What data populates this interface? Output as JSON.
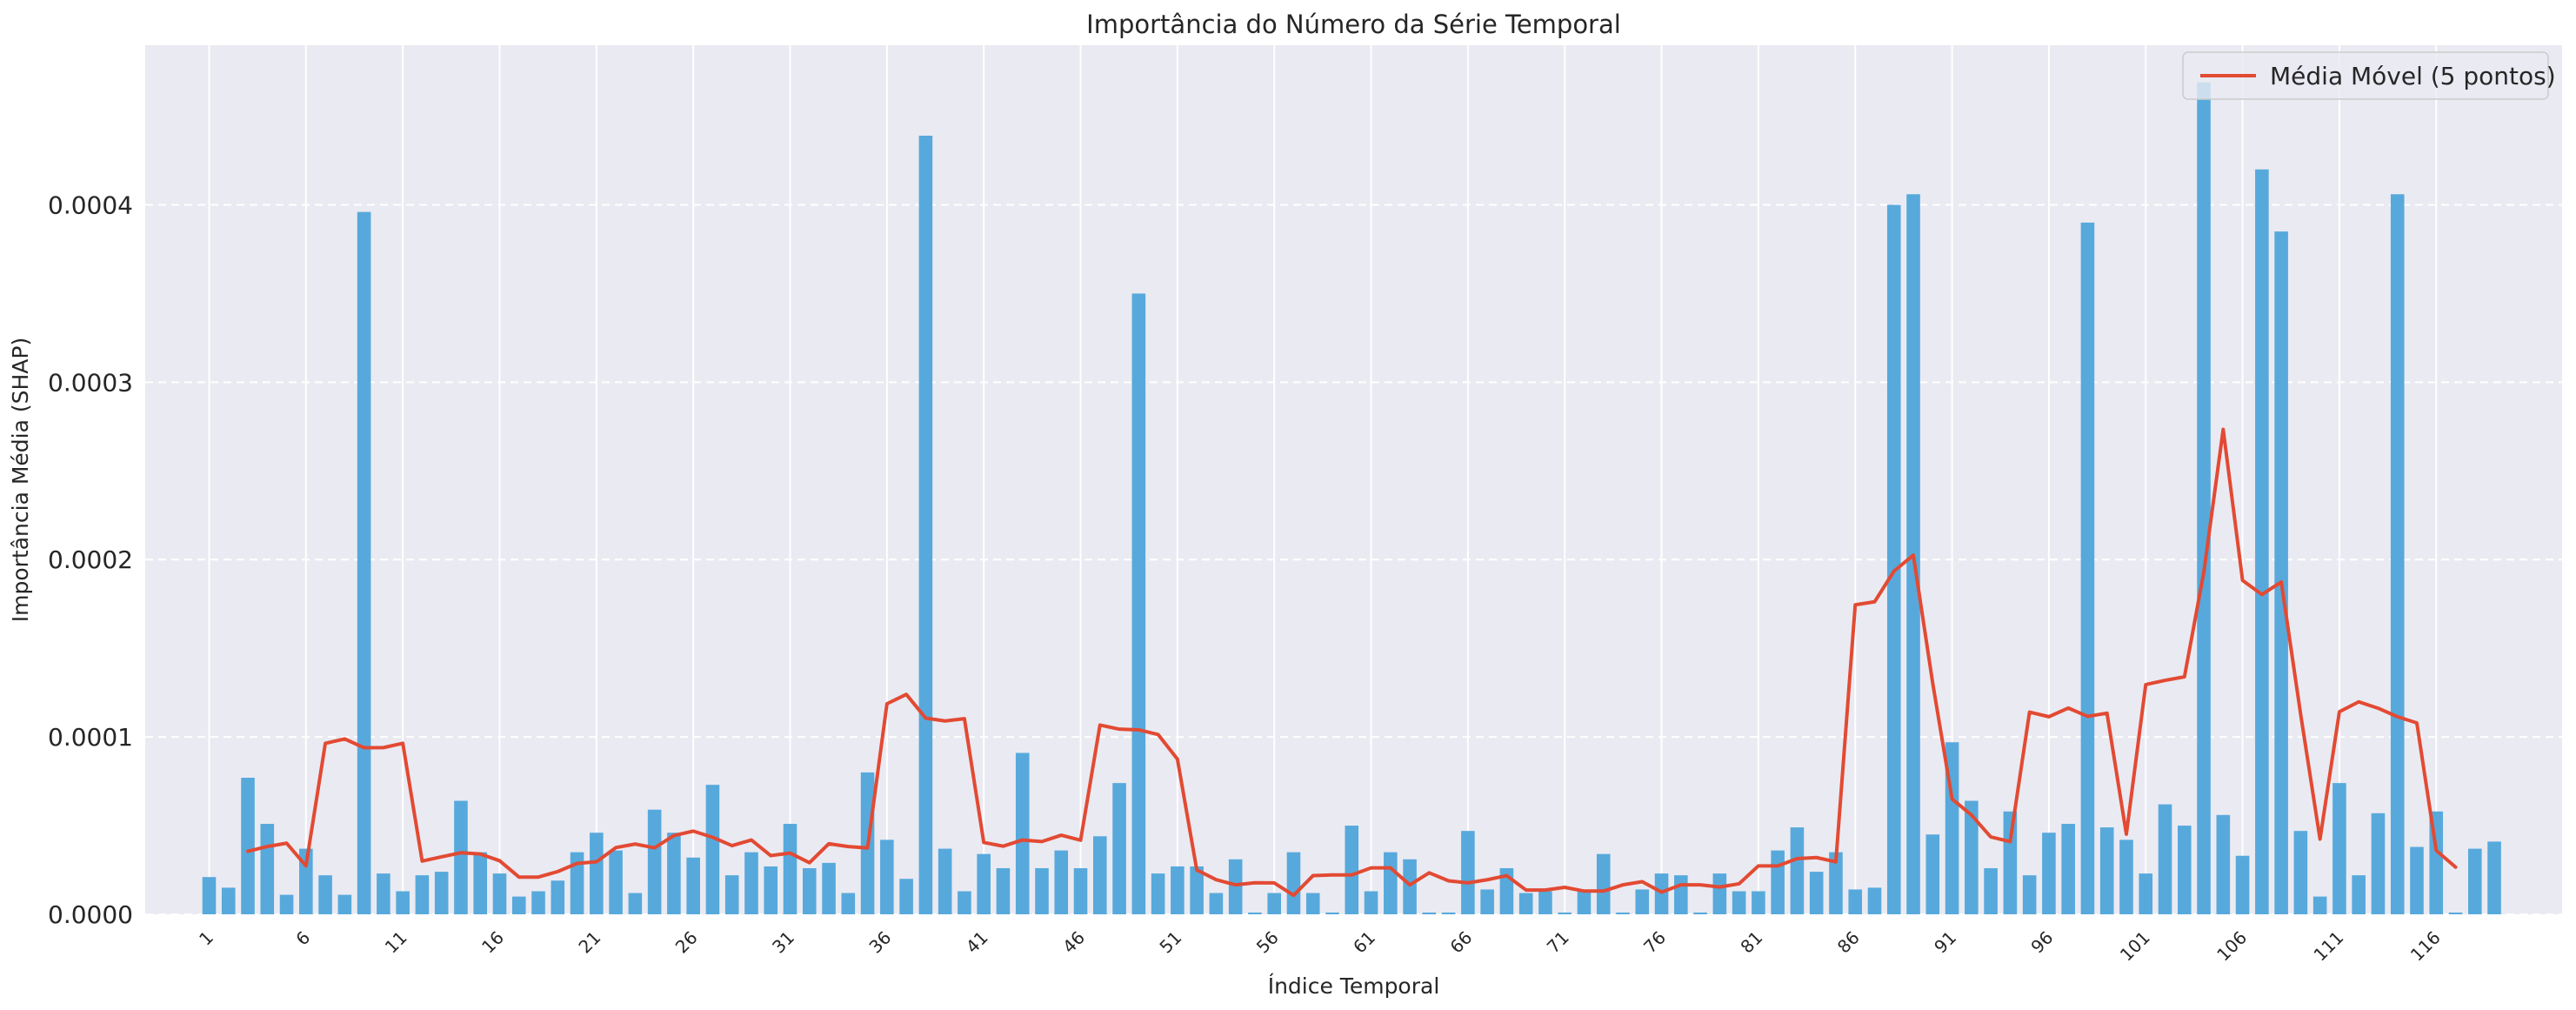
{
  "chart_data": {
    "type": "bar",
    "title": "Importância do Número da Série Temporal",
    "xlabel": "Índice Temporal",
    "ylabel": "Importância Média (SHAP)",
    "ylim": [
      0,
      0.00049
    ],
    "yticks": [
      "0.0000",
      "0.0001",
      "0.0002",
      "0.0003",
      "0.0004"
    ],
    "ytick_values": [
      0,
      0.0001,
      0.0002,
      0.0003,
      0.0004
    ],
    "x_tick_labels": [
      "1",
      "6",
      "11",
      "16",
      "21",
      "26",
      "31",
      "36",
      "41",
      "46",
      "51",
      "56",
      "61",
      "66",
      "71",
      "76",
      "81",
      "86",
      "91",
      "96",
      "101",
      "106",
      "111",
      "116"
    ],
    "grid": true,
    "legend_position": "top-right",
    "bar_color": "#57a9dc",
    "line_color": "#e24a33",
    "series": [
      {
        "kind": "bar",
        "x_start": 1,
        "values": [
          2.1e-05,
          1.5e-05,
          7.7e-05,
          5.1e-05,
          1.1e-05,
          3.7e-05,
          2.2e-05,
          1.1e-05,
          0.000396,
          2.3e-05,
          1.3e-05,
          2.2e-05,
          2.4e-05,
          6.4e-05,
          3.5e-05,
          2.3e-05,
          1e-05,
          1.3e-05,
          1.9e-05,
          3.5e-05,
          4.6e-05,
          3.6e-05,
          1.2e-05,
          5.9e-05,
          4.6e-05,
          3.2e-05,
          7.3e-05,
          2.2e-05,
          3.5e-05,
          2.7e-05,
          5.1e-05,
          2.6e-05,
          2.9e-05,
          1.2e-05,
          8e-05,
          4.2e-05,
          2e-05,
          0.000439,
          3.7e-05,
          1.3e-05,
          3.4e-05,
          2.6e-05,
          9.1e-05,
          2.6e-05,
          3.6e-05,
          2.6e-05,
          4.4e-05,
          7.4e-05,
          0.00035,
          2.3e-05,
          2.7e-05,
          2.7e-05,
          1.2e-05,
          3.1e-05,
          1e-06,
          1.2e-05,
          3.5e-05,
          1.2e-05,
          1e-06,
          5e-05,
          1.3e-05,
          3.5e-05,
          3.1e-05,
          1e-06,
          1e-06,
          4.7e-05,
          1.4e-05,
          2.6e-05,
          1.2e-05,
          1.3e-05,
          1e-06,
          1.3e-05,
          3.4e-05,
          1e-06,
          1.4e-05,
          2.3e-05,
          2.2e-05,
          1e-06,
          2.3e-05,
          1.3e-05,
          1.3e-05,
          3.6e-05,
          4.9e-05,
          2.4e-05,
          3.5e-05,
          1.4e-05,
          1.5e-05,
          0.0004,
          0.000406,
          4.5e-05,
          9.7e-05,
          6.4e-05,
          2.6e-05,
          5.8e-05,
          2.2e-05,
          4.6e-05,
          5.1e-05,
          0.00039,
          4.9e-05,
          4.2e-05,
          2.3e-05,
          6.2e-05,
          5e-05,
          0.000469,
          5.6e-05,
          3.3e-05,
          0.00042,
          0.000385,
          4.7e-05,
          1e-05,
          7.4e-05,
          2.2e-05,
          5.7e-05,
          0.000406,
          3.8e-05,
          5.8e-05,
          1e-06,
          3.7e-05,
          4.1e-05
        ]
      },
      {
        "kind": "line",
        "name": "Média Móvel (5 pontos)",
        "x_start": 3,
        "values": [
          3.55e-05,
          3.82e-05,
          4.01e-05,
          2.73e-05,
          9.64e-05,
          9.89e-05,
          9.39e-05,
          9.4e-05,
          9.64e-05,
          3e-05,
          3.24e-05,
          3.47e-05,
          3.4e-05,
          3.02e-05,
          2.1e-05,
          2.1e-05,
          2.41e-05,
          2.87e-05,
          2.96e-05,
          3.76e-05,
          3.96e-05,
          3.75e-05,
          4.44e-05,
          4.69e-05,
          4.34e-05,
          3.87e-05,
          4.19e-05,
          3.31e-05,
          3.45e-05,
          2.91e-05,
          3.98e-05,
          3.82e-05,
          3.74e-05,
          0.0001187,
          0.000124,
          0.0001106,
          0.000109,
          0.0001103,
          4.05e-05,
          3.84e-05,
          4.19e-05,
          4.1e-05,
          4.46e-05,
          4.18e-05,
          0.0001067,
          0.0001044,
          0.000104,
          0.0001014,
          8.75e-05,
          2.5e-05,
          1.95e-05,
          1.66e-05,
          1.78e-05,
          1.77e-05,
          1.07e-05,
          2.18e-05,
          2.22e-05,
          2.22e-05,
          2.62e-05,
          2.62e-05,
          1.66e-05,
          2.34e-05,
          1.89e-05,
          1.77e-05,
          1.95e-05,
          2.18e-05,
          1.37e-05,
          1.37e-05,
          1.52e-05,
          1.31e-05,
          1.31e-05,
          1.66e-05,
          1.84e-05,
          1.25e-05,
          1.66e-05,
          1.66e-05,
          1.54e-05,
          1.72e-05,
          2.73e-05,
          2.73e-05,
          3.14e-05,
          3.2e-05,
          2.96e-05,
          0.0001745,
          0.0001762,
          0.0001935,
          0.0002025,
          0.0001304,
          6.5e-05,
          5.6e-05,
          4.36e-05,
          4.1e-05,
          0.000114,
          0.0001114,
          0.0001163,
          0.0001116,
          0.0001134,
          4.52e-05,
          0.0001295,
          0.0001319,
          0.0001339,
          0.0001929,
          0.0002734,
          0.0001883,
          0.0001803,
          0.0001874,
          0.0001128,
          4.24e-05,
          0.0001142,
          0.0001198,
          0.0001162,
          0.0001114,
          0.0001079,
          3.6e-05,
          2.66e-05
        ]
      }
    ]
  }
}
